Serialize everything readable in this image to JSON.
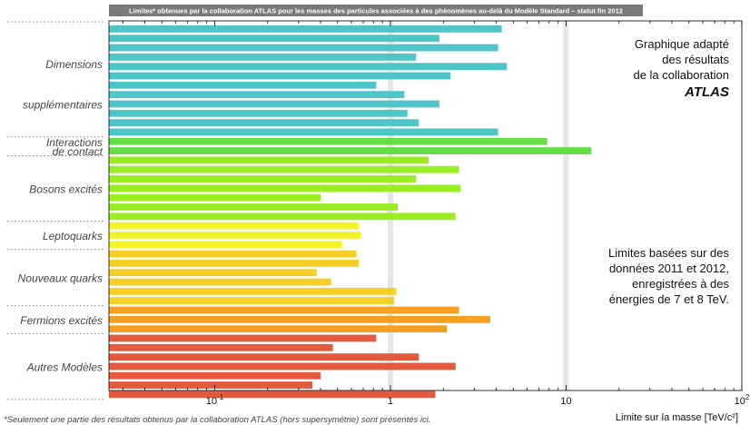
{
  "chart_data": {
    "type": "bar",
    "orientation": "horizontal",
    "title": "Limites* obtenues par la collaboration ATLAS pour les masses des particules associées à des phénomènes au-delà du Modèle Standard – statut fin 2012",
    "xlabel": "Limite sur la masse [TeV/c²]",
    "xscale": "log",
    "xlim": [
      0.025,
      100
    ],
    "xticks": [
      {
        "value": 0.1,
        "base": "10",
        "exp": "-1"
      },
      {
        "value": 1,
        "base": "1",
        "exp": ""
      },
      {
        "value": 10,
        "base": "10",
        "exp": ""
      },
      {
        "value": 100,
        "base": "10",
        "exp": "2"
      }
    ],
    "reference_lines": [
      1,
      10
    ],
    "groups": [
      {
        "label_lines": [
          "Dimensions",
          "supplémentaires"
        ],
        "color": "#4dc5c9",
        "values": [
          4.3,
          1.9,
          4.1,
          1.4,
          4.6,
          2.2,
          0.83,
          1.2,
          1.9,
          1.25,
          1.45,
          4.1
        ]
      },
      {
        "label_lines": [
          "Interactions",
          "de contact"
        ],
        "color": "#66dd44",
        "values": [
          7.8,
          13.9
        ]
      },
      {
        "label_lines": [
          "Bosons excités"
        ],
        "color": "#99ee22",
        "values": [
          1.65,
          2.45,
          1.4,
          2.5,
          0.4,
          1.1,
          2.35
        ]
      },
      {
        "label_lines": [
          "Leptoquarks"
        ],
        "color": "#f3f32a",
        "values": [
          0.66,
          0.68,
          0.53
        ]
      },
      {
        "label_lines": [
          "Nouveaux quarks"
        ],
        "color": "#f5cf25",
        "values": [
          0.64,
          0.66,
          0.38,
          0.46,
          1.08,
          1.05
        ]
      },
      {
        "label_lines": [
          "Fermions excités"
        ],
        "color": "#f5a020",
        "values": [
          2.45,
          3.7,
          2.1
        ]
      },
      {
        "label_lines": [
          "Autres Modèles"
        ],
        "color": "#e55a3c",
        "values": [
          0.83,
          0.47,
          1.45,
          2.35,
          0.4,
          0.36,
          1.8
        ]
      }
    ],
    "annotations": {
      "top_right": [
        "Graphique adapté",
        "des résultats",
        "de la collaboration",
        "ATLAS"
      ],
      "middle_right": [
        "Limites basées sur des",
        "données 2011 et 2012,",
        "enregistrées à des",
        "énergies de 7 et 8 TeV."
      ]
    },
    "footnote": "*Seulement une partie des résultats obtenus par la collaboration ATLAS (hors supersymétrie) sont présentés ici.",
    "grid": false
  }
}
